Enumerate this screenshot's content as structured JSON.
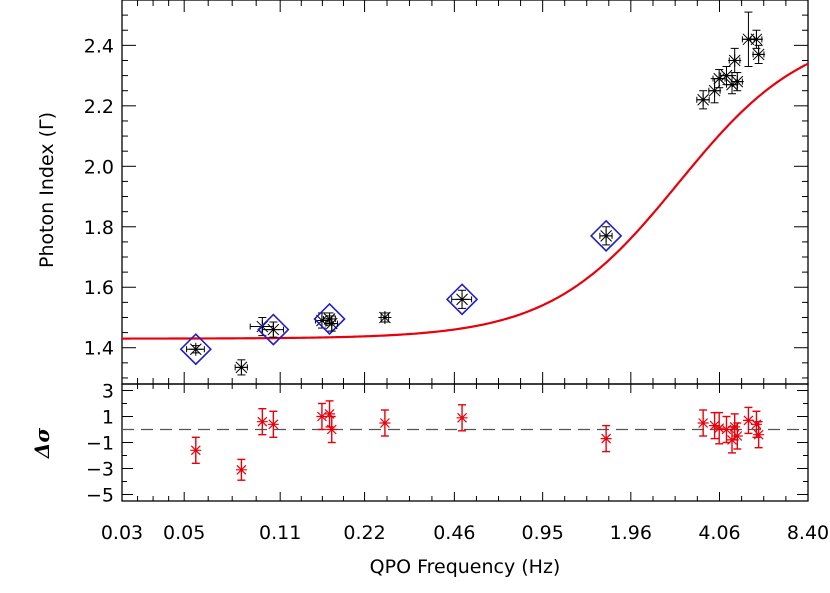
{
  "chart_data": [
    {
      "type": "scatter",
      "panel": "main",
      "xlabel": "QPO Frequency (Hz)",
      "ylabel": "Photon Index (Γ)",
      "x_scale": "log",
      "xlim": [
        0.03,
        8.4
      ],
      "ylim": [
        1.28,
        2.55
      ],
      "x_ticks": [
        0.03,
        0.05,
        0.11,
        0.22,
        0.46,
        0.95,
        1.96,
        4.06,
        8.4
      ],
      "x_tick_labels": [
        "0.03",
        "0.05",
        "0.11",
        "0.22",
        "0.46",
        "0.95",
        "1.96",
        "4.06",
        "8.40"
      ],
      "y_ticks": [
        1.4,
        1.6,
        1.8,
        2.0,
        2.2,
        2.4
      ],
      "y_tick_labels": [
        "1.4",
        "1.6",
        "1.8",
        "2.0",
        "2.2",
        "2.4"
      ],
      "grid": false,
      "points": [
        {
          "x": 0.055,
          "y": 1.395,
          "xerr": 0.004,
          "yerr": 0.012,
          "highlight": true
        },
        {
          "x": 0.08,
          "y": 1.335,
          "xerr": 0.004,
          "yerr": 0.025,
          "highlight": false
        },
        {
          "x": 0.095,
          "y": 1.47,
          "xerr": 0.009,
          "yerr": 0.03,
          "highlight": false
        },
        {
          "x": 0.104,
          "y": 1.46,
          "xerr": 0.009,
          "yerr": 0.025,
          "highlight": true
        },
        {
          "x": 0.155,
          "y": 1.49,
          "xerr": 0.008,
          "yerr": 0.025,
          "highlight": false
        },
        {
          "x": 0.165,
          "y": 1.495,
          "xerr": 0.008,
          "yerr": 0.02,
          "highlight": true
        },
        {
          "x": 0.168,
          "y": 1.48,
          "xerr": 0.008,
          "yerr": 0.025,
          "highlight": false
        },
        {
          "x": 0.26,
          "y": 1.5,
          "xerr": 0.008,
          "yerr": 0.015,
          "highlight": false
        },
        {
          "x": 0.49,
          "y": 1.56,
          "xerr": 0.04,
          "yerr": 0.03,
          "highlight": true
        },
        {
          "x": 1.6,
          "y": 1.77,
          "xerr": 0.08,
          "yerr": 0.03,
          "highlight": true
        },
        {
          "x": 3.55,
          "y": 2.22,
          "xerr": 0.18,
          "yerr": 0.03,
          "highlight": false
        },
        {
          "x": 3.9,
          "y": 2.25,
          "xerr": 0.18,
          "yerr": 0.04,
          "highlight": false
        },
        {
          "x": 4.05,
          "y": 2.29,
          "xerr": 0.2,
          "yerr": 0.03,
          "highlight": false
        },
        {
          "x": 4.3,
          "y": 2.3,
          "xerr": 0.2,
          "yerr": 0.03,
          "highlight": false
        },
        {
          "x": 4.5,
          "y": 2.27,
          "xerr": 0.2,
          "yerr": 0.03,
          "highlight": false
        },
        {
          "x": 4.6,
          "y": 2.35,
          "xerr": 0.2,
          "yerr": 0.04,
          "highlight": false
        },
        {
          "x": 4.7,
          "y": 2.28,
          "xerr": 0.2,
          "yerr": 0.03,
          "highlight": false
        },
        {
          "x": 5.15,
          "y": 2.42,
          "xerr": 0.25,
          "yerr": 0.09,
          "highlight": false
        },
        {
          "x": 5.5,
          "y": 2.42,
          "xerr": 0.25,
          "yerr": 0.03,
          "highlight": false
        },
        {
          "x": 5.6,
          "y": 2.37,
          "xerr": 0.25,
          "yerr": 0.03,
          "highlight": false
        }
      ],
      "fit_curve": {
        "color": "#e8000b",
        "model": "logistic",
        "A": 1.43,
        "B": 2.46,
        "x0": 2.9,
        "slope": 1.9
      },
      "marker_color": "#000000",
      "highlight_color": "#1f1fc8"
    },
    {
      "type": "scatter",
      "panel": "residuals",
      "ylabel": "Δσ",
      "ylim": [
        -5.5,
        3.5
      ],
      "y_ticks": [
        3,
        1,
        -1,
        -3,
        -5
      ],
      "y_tick_labels": [
        "3",
        "1",
        "−1",
        "−3",
        "−5"
      ],
      "reference_line": 0,
      "color": "#e8000b",
      "points": [
        {
          "x": 0.055,
          "y": -1.6,
          "yerr": 1.0
        },
        {
          "x": 0.08,
          "y": -3.1,
          "yerr": 0.8
        },
        {
          "x": 0.095,
          "y": 0.6,
          "yerr": 1.0
        },
        {
          "x": 0.104,
          "y": 0.4,
          "yerr": 1.0
        },
        {
          "x": 0.155,
          "y": 1.0,
          "yerr": 1.0
        },
        {
          "x": 0.165,
          "y": 1.2,
          "yerr": 1.0
        },
        {
          "x": 0.168,
          "y": 0.0,
          "yerr": 1.0
        },
        {
          "x": 0.26,
          "y": 0.5,
          "yerr": 1.0
        },
        {
          "x": 0.49,
          "y": 0.9,
          "yerr": 1.0
        },
        {
          "x": 1.6,
          "y": -0.7,
          "yerr": 1.0
        },
        {
          "x": 3.55,
          "y": 0.5,
          "yerr": 1.0
        },
        {
          "x": 3.9,
          "y": 0.3,
          "yerr": 1.0
        },
        {
          "x": 4.05,
          "y": 0.1,
          "yerr": 1.2
        },
        {
          "x": 4.3,
          "y": 0.0,
          "yerr": 1.0
        },
        {
          "x": 4.5,
          "y": -0.8,
          "yerr": 1.0
        },
        {
          "x": 4.6,
          "y": 0.2,
          "yerr": 1.0
        },
        {
          "x": 4.7,
          "y": -0.5,
          "yerr": 1.0
        },
        {
          "x": 5.15,
          "y": 0.7,
          "yerr": 1.0
        },
        {
          "x": 5.5,
          "y": 0.4,
          "yerr": 1.0
        },
        {
          "x": 5.6,
          "y": -0.4,
          "yerr": 1.0
        }
      ]
    }
  ]
}
